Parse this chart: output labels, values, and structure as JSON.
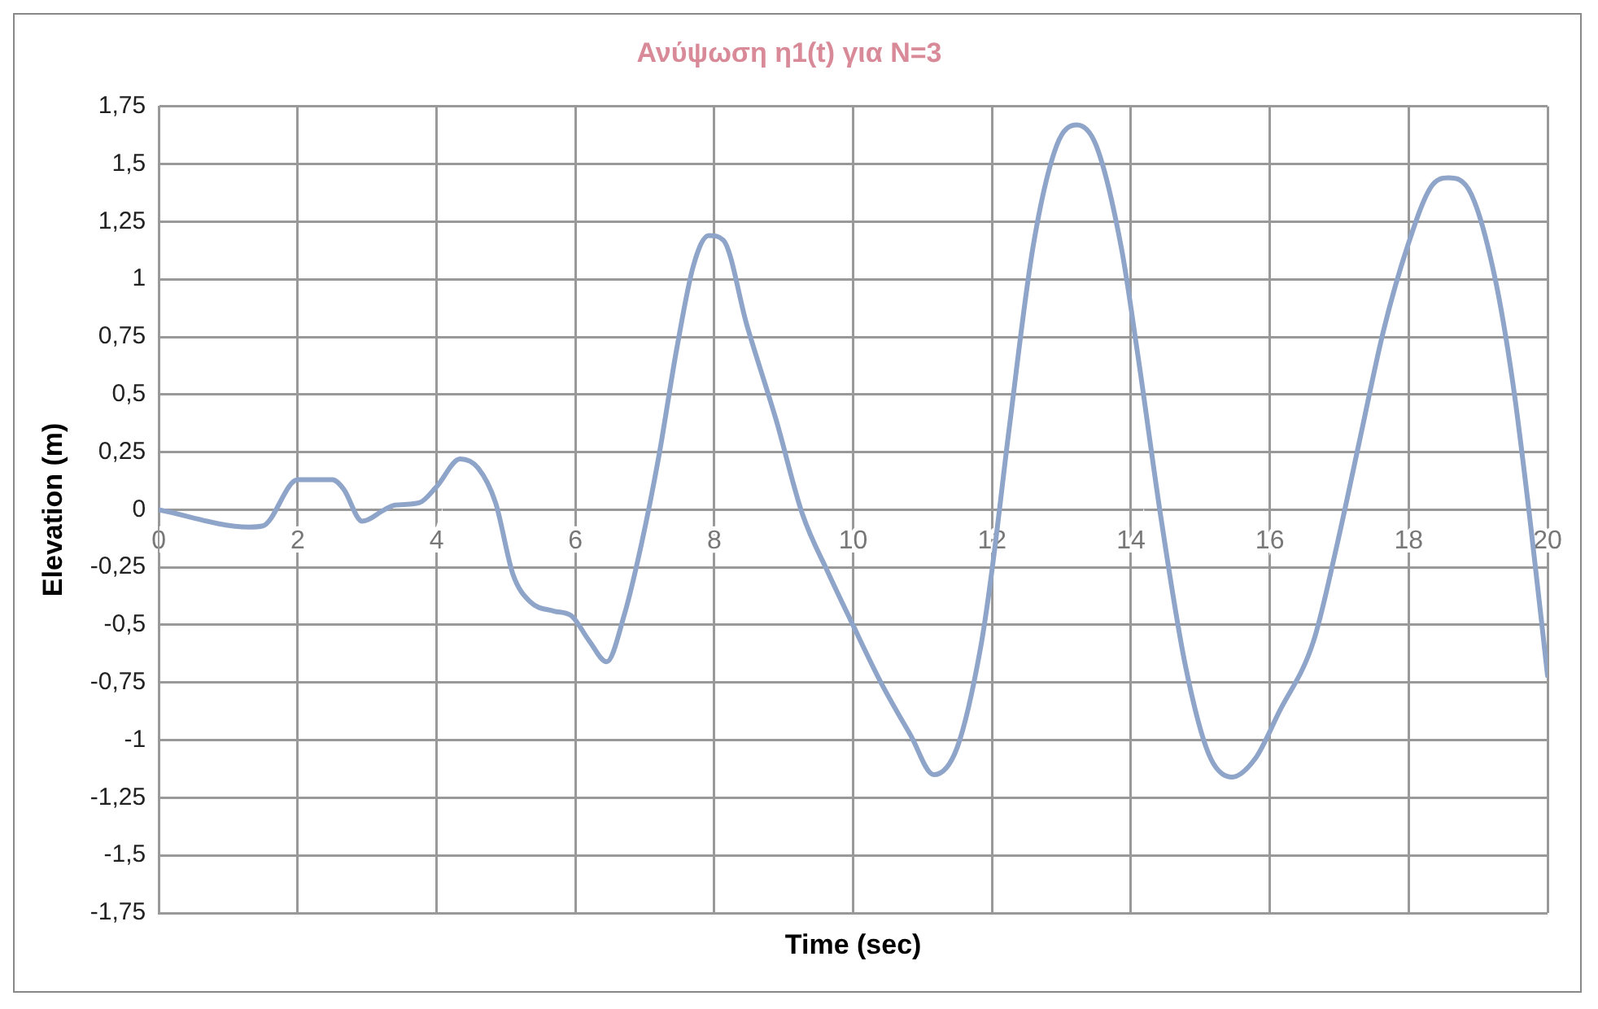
{
  "chart_data": {
    "type": "line",
    "title": "Ανύψωση η1(t) για N=3",
    "xlabel": "Time (sec)",
    "ylabel": "Elevation (m)",
    "x": [
      0,
      1.3,
      1.5,
      2.0,
      2.5,
      2.66,
      2.93,
      3.25,
      3.4,
      3.75,
      4.0,
      4.34,
      4.6,
      4.85,
      5.1,
      5.35,
      5.69,
      5.94,
      6.2,
      6.45,
      6.7,
      6.95,
      7.2,
      7.46,
      7.7,
      7.92,
      8.13,
      8.47,
      8.89,
      9.27,
      9.65,
      9.98,
      10.4,
      10.83,
      11.16,
      11.5,
      11.84,
      12.0,
      12.25,
      12.59,
      12.93,
      13.22,
      13.5,
      13.86,
      14.1,
      14.44,
      14.78,
      15.12,
      15.45,
      15.79,
      16.13,
      16.63,
      16.97,
      17.3,
      17.64,
      17.98,
      18.32,
      18.57,
      18.9,
      19.24,
      19.5,
      19.75,
      20
    ],
    "series": [
      {
        "color": "#8ea4c8",
        "values": [
          0,
          -0.075,
          -0.07,
          0.13,
          0.13,
          0.09,
          -0.05,
          0,
          0.02,
          0.03,
          0.1,
          0.22,
          0.18,
          0.03,
          -0.28,
          -0.4,
          -0.44,
          -0.46,
          -0.57,
          -0.66,
          -0.46,
          -0.15,
          0.23,
          0.7,
          1.06,
          1.19,
          1.17,
          0.8,
          0.39,
          -0.02,
          -0.28,
          -0.49,
          -0.75,
          -0.98,
          -1.15,
          -1.03,
          -0.59,
          -0.26,
          0.36,
          1.14,
          1.58,
          1.67,
          1.58,
          1.14,
          0.67,
          -0.05,
          -0.67,
          -1.06,
          -1.16,
          -1.08,
          -0.88,
          -0.57,
          -0.15,
          0.31,
          0.78,
          1.14,
          1.4,
          1.44,
          1.37,
          1.01,
          0.55,
          -0.05,
          -0.72
        ]
      }
    ],
    "xlim": [
      0,
      20
    ],
    "xticks": [
      0,
      2,
      4,
      6,
      8,
      10,
      12,
      14,
      16,
      18,
      20
    ],
    "ylim": [
      -1.75,
      1.75
    ],
    "yticks": [
      {
        "value": -1.75,
        "label": "-1,75"
      },
      {
        "value": -1.5,
        "label": "-1,5"
      },
      {
        "value": -1.25,
        "label": "-1,25"
      },
      -1,
      {
        "value": -0.75,
        "label": "-0,75"
      },
      {
        "value": -0.5,
        "label": "-0,5"
      },
      {
        "value": -0.25,
        "label": "-0,25"
      },
      0,
      {
        "value": 0.25,
        "label": "0,25"
      },
      {
        "value": 0.5,
        "label": "0,5"
      },
      {
        "value": 0.75,
        "label": "0,75"
      },
      1,
      {
        "value": 1.25,
        "label": "1,25"
      },
      {
        "value": 1.5,
        "label": "1,5"
      },
      {
        "value": 1.75,
        "label": "1,75"
      }
    ],
    "grid": true,
    "legend": false,
    "marker": "none",
    "line_style": "solid"
  }
}
